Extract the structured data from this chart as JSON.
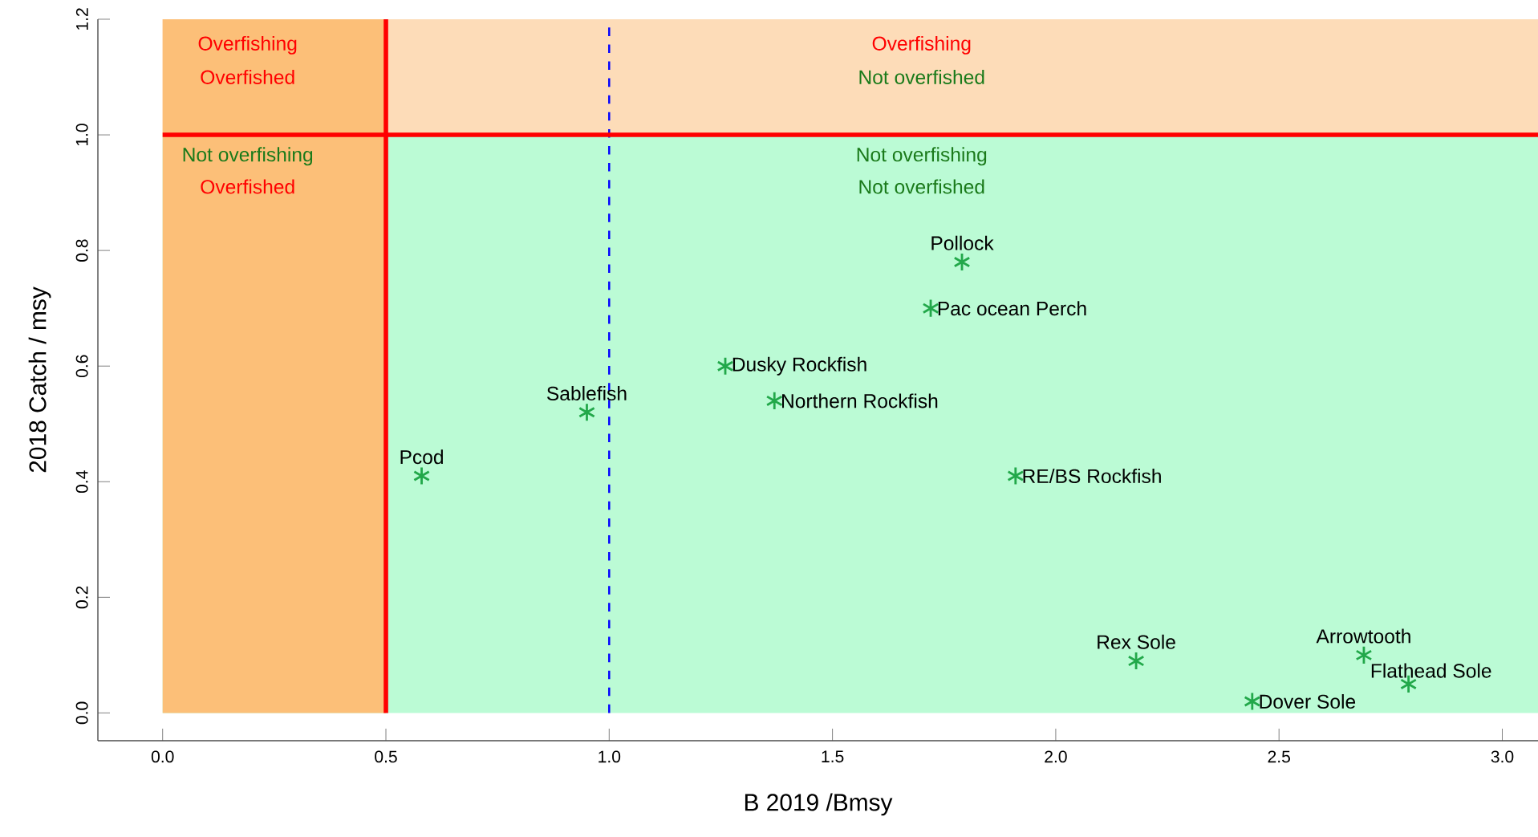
{
  "chart_data": {
    "type": "scatter",
    "xlabel": "B 2019 /Bmsy",
    "ylabel": "2018 Catch / msy",
    "xlim": [
      -0.145,
      3.08
    ],
    "ylim": [
      -0.048,
      1.2
    ],
    "xticks": [
      {
        "value": 0,
        "label": "0.0"
      },
      {
        "value": 0.5,
        "label": "0.5"
      },
      {
        "value": 1,
        "label": "1.0"
      },
      {
        "value": 1.5,
        "label": "1.5"
      },
      {
        "value": 2,
        "label": "2.0"
      },
      {
        "value": 2.5,
        "label": "2.5"
      },
      {
        "value": 3,
        "label": "3.0"
      }
    ],
    "yticks": [
      {
        "value": 0,
        "label": "0.0"
      },
      {
        "value": 0.2,
        "label": "0.2"
      },
      {
        "value": 0.4,
        "label": "0.4"
      },
      {
        "value": 0.6,
        "label": "0.6"
      },
      {
        "value": 0.8,
        "label": "0.8"
      },
      {
        "value": 1,
        "label": "1.0"
      },
      {
        "value": 1.2,
        "label": "1.2"
      }
    ],
    "grid": false,
    "marker": "cross",
    "series": [
      {
        "color": "#22a84a",
        "x": [
          1.79,
          1.72,
          1.26,
          1.37,
          0.95,
          0.58,
          1.91,
          2.18,
          2.69,
          2.79,
          2.44
        ],
        "values": [
          0.78,
          0.7,
          0.6,
          0.54,
          0.52,
          0.41,
          0.41,
          0.09,
          0.1,
          0.05,
          0.02
        ]
      }
    ],
    "bands": [
      {
        "axis": "y",
        "from": 1.0,
        "to": 1.2,
        "color": "#fddcb8"
      },
      {
        "axis": "y",
        "from": 0,
        "to": 1.0,
        "color": "#bbfbd5"
      },
      {
        "axis": "x",
        "from": 0,
        "to": 0.5,
        "color": "#fcbf78"
      }
    ],
    "ref_lines": [
      {
        "axis": "x",
        "value": 1.0,
        "color": "#0000ff",
        "line_style": "dashed"
      },
      {
        "axis": "x",
        "value": 0.5,
        "color": "#ff0000"
      },
      {
        "axis": "y",
        "value": 1.0,
        "color": "#ff0000"
      }
    ],
    "annotations": [
      "Overfishing",
      "Overfished",
      "Overfishing",
      "Not overfished",
      "Not overfishing",
      "Overfished",
      "Not overfishing",
      "Not overfished",
      {
        "text": "Pollock",
        "x": 1.79,
        "y": 0.78
      },
      {
        "text": "Pac ocean Perch",
        "x": 1.72,
        "y": 0.7
      },
      {
        "text": "Dusky Rockfish",
        "x": 1.26,
        "y": 0.6
      },
      {
        "text": "Northern Rockfish",
        "x": 1.37,
        "y": 0.54
      },
      {
        "text": "Sablefish",
        "x": 0.95,
        "y": 0.52
      },
      {
        "text": "Pcod",
        "x": 0.58,
        "y": 0.41
      },
      {
        "text": "RE/BS Rockfish",
        "x": 1.91,
        "y": 0.41
      },
      {
        "text": "Rex Sole",
        "x": 2.18,
        "y": 0.09
      },
      {
        "text": "Arrowtooth",
        "x": 2.69,
        "y": 0.1
      },
      {
        "text": "Flathead Sole",
        "x": 2.79,
        "y": 0.05
      },
      {
        "text": "Dover Sole",
        "x": 2.44,
        "y": 0.02
      }
    ]
  }
}
